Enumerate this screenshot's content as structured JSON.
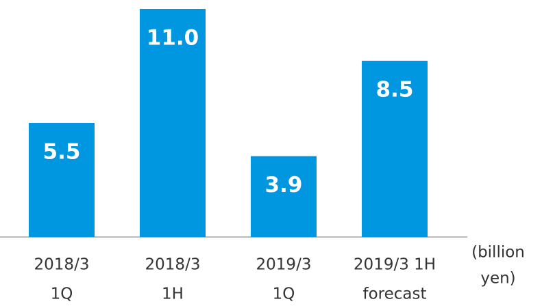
{
  "chart_data": {
    "type": "bar",
    "categories": [
      [
        "2018/3",
        "1Q"
      ],
      [
        "2018/3",
        "1H"
      ],
      [
        "2019/3",
        "1Q"
      ],
      [
        "2019/3 1H",
        "forecast"
      ]
    ],
    "values": [
      5.5,
      11.0,
      3.9,
      8.5
    ],
    "value_labels": [
      "5.5",
      "11.0",
      "3.9",
      "8.5"
    ],
    "color": "#0096e0",
    "ylim": [
      0,
      11
    ],
    "unit_label": [
      "(billion",
      "yen)"
    ]
  }
}
